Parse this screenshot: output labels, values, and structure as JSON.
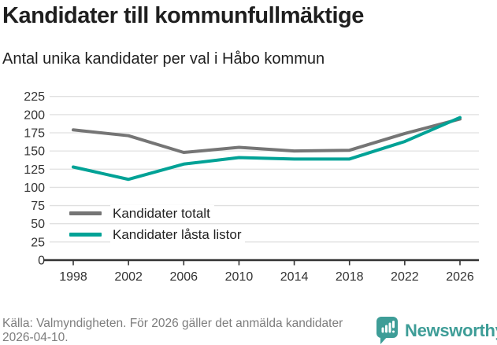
{
  "header": {
    "title": "Kandidater till kommunfullmäktige",
    "subtitle": "Antal unika kandidater per val i Håbo kommun"
  },
  "chart_data": {
    "type": "line",
    "categories": [
      "1998",
      "2002",
      "2006",
      "2010",
      "2014",
      "2018",
      "2022",
      "2026"
    ],
    "series": [
      {
        "name": "Kandidater totalt",
        "color": "#757575",
        "values": [
          179,
          171,
          148,
          155,
          150,
          151,
          174,
          194
        ]
      },
      {
        "name": "Kandidater låsta listor",
        "color": "#00a296",
        "values": [
          128,
          111,
          132,
          141,
          139,
          139,
          163,
          196
        ]
      }
    ],
    "title": "Kandidater till kommunfullmäktige",
    "subtitle": "Antal unika kandidater per val i Håbo kommun",
    "xlabel": "",
    "ylabel": "",
    "ylim": [
      0,
      225
    ],
    "yticks": [
      0,
      25,
      50,
      75,
      100,
      125,
      150,
      175,
      200,
      225
    ],
    "grid": "horizontal",
    "legend_position": "inside-bottom-left"
  },
  "footer": {
    "source": "Källa: Valmyndigheten. För 2026 gäller det anmälda kandidater 2026-04-10.",
    "brand": "Newsworthy"
  },
  "icons": {
    "brand_icon": "newsworthy-bar-chart-speech-bubble"
  },
  "colors": {
    "accent_teal": "#00a296",
    "brand_teal": "#3e9d97",
    "series_gray": "#757575",
    "axis": "#333333",
    "grid": "#e0e0e0",
    "text": "#1f1f1f",
    "muted": "#7d7d7d"
  }
}
